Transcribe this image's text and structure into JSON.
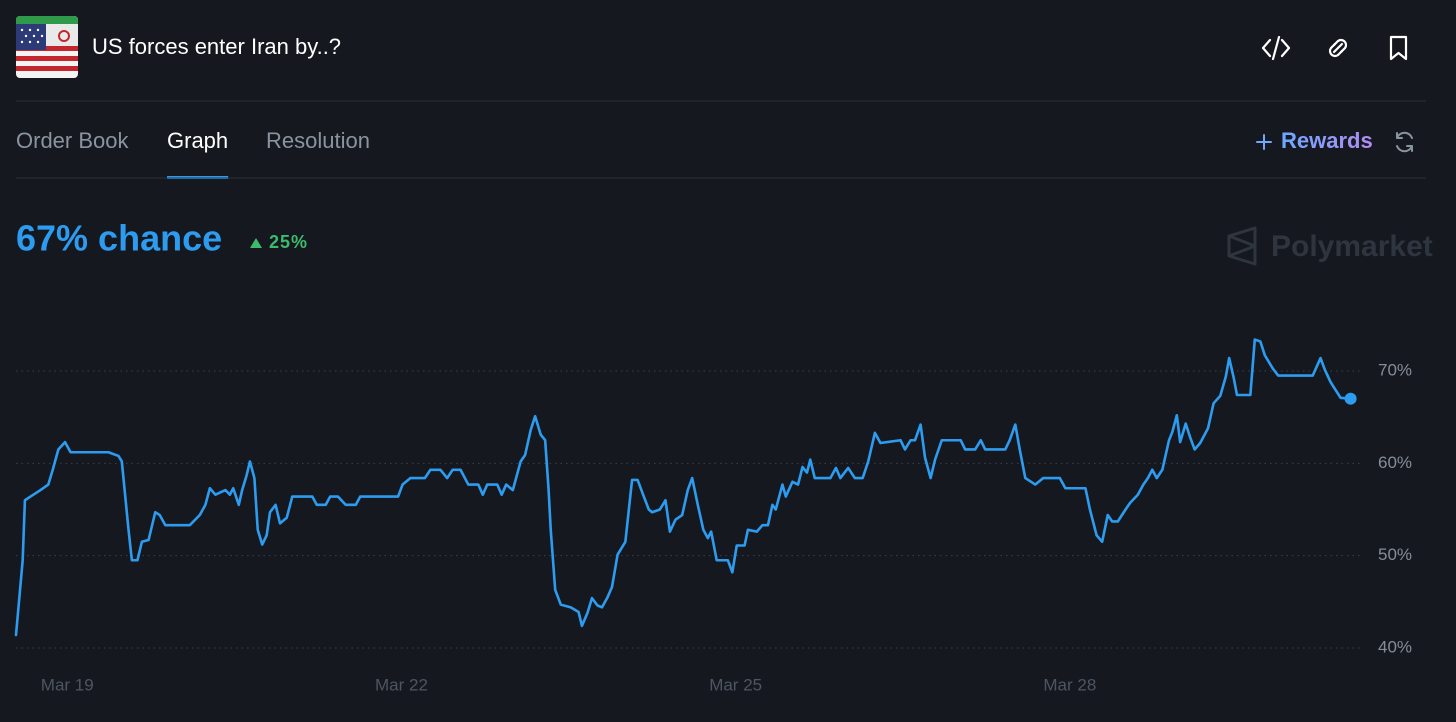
{
  "header": {
    "title": "US forces enter Iran by..?"
  },
  "tabs": [
    "Order Book",
    "Graph",
    "Resolution"
  ],
  "active_tab": 1,
  "rewards": "Rewards",
  "chance_label": "67% chance",
  "change_label": "25%",
  "watermark": "Polymarket",
  "chart_data": {
    "type": "line",
    "color": "#2d9cf0",
    "grid": true,
    "xlim": [
      18.54,
      30.52
    ],
    "ylim": [
      39,
      76
    ],
    "xticks": [
      {
        "value": 19,
        "label": "Mar 19"
      },
      {
        "value": 22,
        "label": "Mar 22"
      },
      {
        "value": 25,
        "label": "Mar 25"
      },
      {
        "value": 28,
        "label": "Mar 28"
      }
    ],
    "yticks": [
      {
        "value": 40,
        "label": "40%"
      },
      {
        "value": 50,
        "label": "50%"
      },
      {
        "value": 60,
        "label": "60%"
      },
      {
        "value": 70,
        "label": "70%"
      }
    ],
    "x": [
      18.54,
      18.6,
      18.62,
      18.67,
      18.76,
      18.83,
      18.87,
      18.92,
      18.98,
      19.03,
      19.37,
      19.46,
      19.49,
      19.55,
      19.58,
      19.63,
      19.67,
      19.73,
      19.79,
      19.83,
      19.88,
      20.1,
      20.19,
      20.24,
      20.28,
      20.33,
      20.42,
      20.46,
      20.49,
      20.54,
      20.57,
      20.61,
      20.64,
      20.68,
      20.71,
      20.75,
      20.79,
      20.82,
      20.87,
      20.91,
      20.97,
      21.02,
      21.2,
      21.24,
      21.32,
      21.36,
      21.43,
      21.5,
      21.59,
      21.63,
      21.97,
      22.01,
      22.08,
      22.21,
      22.26,
      22.35,
      22.41,
      22.46,
      22.53,
      22.6,
      22.69,
      22.73,
      22.77,
      22.86,
      22.9,
      22.94,
      23.0,
      23.07,
      23.11,
      23.16,
      23.2,
      23.25,
      23.29,
      23.32,
      23.34,
      23.38,
      23.43,
      23.52,
      23.59,
      23.62,
      23.67,
      23.71,
      23.76,
      23.8,
      23.85,
      23.89,
      23.94,
      24.01,
      24.07,
      24.12,
      24.16,
      24.22,
      24.25,
      24.32,
      24.37,
      24.41,
      24.46,
      24.52,
      24.57,
      24.61,
      24.66,
      24.71,
      24.75,
      24.78,
      24.83,
      24.93,
      24.97,
      25.01,
      25.08,
      25.11,
      25.19,
      25.24,
      25.29,
      25.33,
      25.36,
      25.42,
      25.45,
      25.51,
      25.56,
      25.6,
      25.64,
      25.67,
      25.71,
      25.85,
      25.9,
      25.94,
      26.01,
      26.07,
      26.14,
      26.19,
      26.25,
      26.3,
      26.48,
      26.52,
      26.57,
      26.61,
      26.66,
      26.7,
      26.75,
      26.79,
      26.85,
      27.02,
      27.06,
      27.15,
      27.2,
      27.24,
      27.42,
      27.46,
      27.51,
      27.55,
      27.6,
      27.69,
      27.76,
      27.91,
      27.96,
      28.14,
      28.18,
      28.24,
      28.29,
      28.34,
      28.38,
      28.43,
      28.5,
      28.54,
      28.61,
      28.66,
      28.7,
      28.74,
      28.78,
      28.83,
      28.89,
      28.92,
      28.96,
      28.99,
      29.04,
      29.08,
      29.12,
      29.17,
      29.24,
      29.29,
      29.35,
      29.4,
      29.43,
      29.47,
      29.5,
      29.62,
      29.66,
      29.71,
      29.75,
      29.82,
      29.87,
      30.18,
      30.25,
      30.29,
      30.34,
      30.43,
      30.52
    ],
    "values": [
      41.4,
      49.5,
      56.0,
      56.4,
      57.1,
      57.7,
      59.3,
      61.5,
      62.3,
      61.2,
      61.2,
      60.8,
      60.2,
      52.8,
      49.5,
      49.5,
      51.5,
      51.7,
      54.7,
      54.4,
      53.3,
      53.3,
      54.4,
      55.5,
      57.3,
      56.6,
      57.1,
      56.6,
      57.3,
      55.5,
      57.1,
      58.7,
      60.2,
      58.4,
      52.8,
      51.2,
      52.2,
      54.7,
      55.5,
      53.5,
      54.1,
      56.4,
      56.4,
      55.5,
      55.5,
      56.4,
      56.4,
      55.5,
      55.5,
      56.4,
      56.4,
      57.7,
      58.4,
      58.4,
      59.3,
      59.3,
      58.4,
      59.3,
      59.3,
      57.7,
      57.7,
      56.6,
      57.7,
      57.7,
      56.6,
      57.7,
      57.1,
      60.2,
      60.9,
      63.6,
      65.1,
      63.1,
      62.5,
      57.3,
      52.8,
      46.3,
      44.7,
      44.4,
      43.9,
      42.4,
      43.8,
      45.4,
      44.6,
      44.4,
      45.5,
      46.6,
      50.1,
      51.5,
      58.2,
      58.2,
      56.9,
      55.0,
      54.7,
      55.0,
      56.0,
      52.6,
      53.9,
      54.4,
      57.1,
      58.4,
      55.5,
      52.8,
      51.9,
      52.6,
      49.5,
      49.5,
      48.2,
      51.1,
      51.1,
      52.8,
      52.6,
      53.3,
      53.3,
      55.5,
      55.0,
      57.7,
      56.4,
      58.0,
      57.7,
      59.6,
      59.0,
      60.4,
      58.4,
      58.4,
      59.5,
      58.4,
      59.5,
      58.4,
      58.4,
      60.2,
      63.3,
      62.2,
      62.5,
      61.5,
      62.5,
      62.5,
      64.2,
      60.6,
      58.4,
      60.4,
      62.5,
      62.5,
      61.5,
      61.5,
      62.5,
      61.5,
      61.5,
      62.5,
      64.2,
      61.5,
      58.4,
      57.7,
      58.4,
      58.4,
      57.3,
      57.3,
      55.0,
      52.2,
      51.5,
      54.4,
      53.7,
      53.7,
      55.0,
      55.7,
      56.6,
      57.7,
      58.4,
      59.3,
      58.4,
      59.3,
      62.5,
      63.4,
      65.2,
      62.3,
      64.3,
      62.8,
      61.5,
      62.2,
      63.8,
      66.5,
      67.3,
      69.4,
      71.4,
      69.3,
      67.4,
      67.4,
      73.4,
      73.2,
      71.7,
      70.3,
      69.5,
      69.5,
      71.4,
      70.1,
      68.8,
      67.1,
      67
    ]
  }
}
